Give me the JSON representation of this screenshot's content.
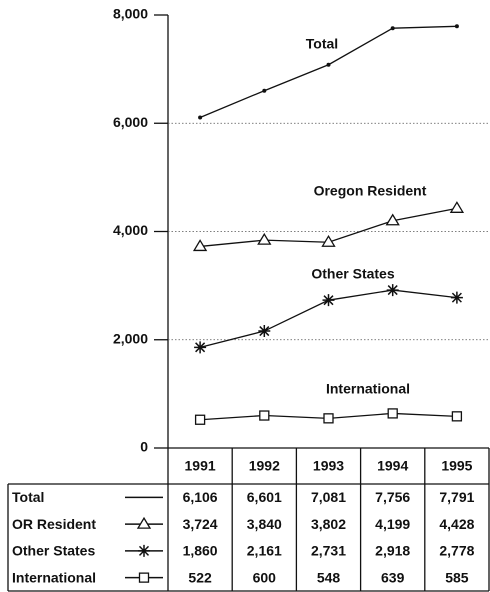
{
  "chart_data": {
    "type": "line",
    "categories": [
      "1991",
      "1992",
      "1993",
      "1994",
      "1995"
    ],
    "series": [
      {
        "name": "Total",
        "color": "#111111",
        "marker": "dot",
        "values": [
          6106,
          6601,
          7081,
          7756,
          7791
        ],
        "value_labels": [
          "6,106",
          "6,601",
          "7,081",
          "7,756",
          "7,791"
        ]
      },
      {
        "name": "OR Resident",
        "color": "#111111",
        "marker": "triangle",
        "values": [
          3724,
          3840,
          3802,
          4199,
          4428
        ],
        "value_labels": [
          "3,724",
          "3,840",
          "3,802",
          "4,199",
          "4,428"
        ]
      },
      {
        "name": "Other States",
        "color": "#111111",
        "marker": "asterisk",
        "values": [
          1860,
          2161,
          2731,
          2918,
          2778
        ],
        "value_labels": [
          "1,860",
          "2,161",
          "2,731",
          "2,918",
          "2,778"
        ]
      },
      {
        "name": "International",
        "color": "#111111",
        "marker": "square",
        "values": [
          522,
          600,
          548,
          639,
          585
        ],
        "value_labels": [
          "522",
          "600",
          "548",
          "639",
          "585"
        ]
      }
    ],
    "annotations": [
      "Total",
      "Oregon Resident",
      "Other States",
      "International"
    ],
    "ylim": [
      0,
      8000
    ],
    "yticks": [
      {
        "value": 0,
        "label": "0"
      },
      {
        "value": 2000,
        "label": "2,000"
      },
      {
        "value": 4000,
        "label": "4,000"
      },
      {
        "value": 6000,
        "label": "6,000"
      },
      {
        "value": 8000,
        "label": "8,000"
      }
    ],
    "grid": true
  }
}
